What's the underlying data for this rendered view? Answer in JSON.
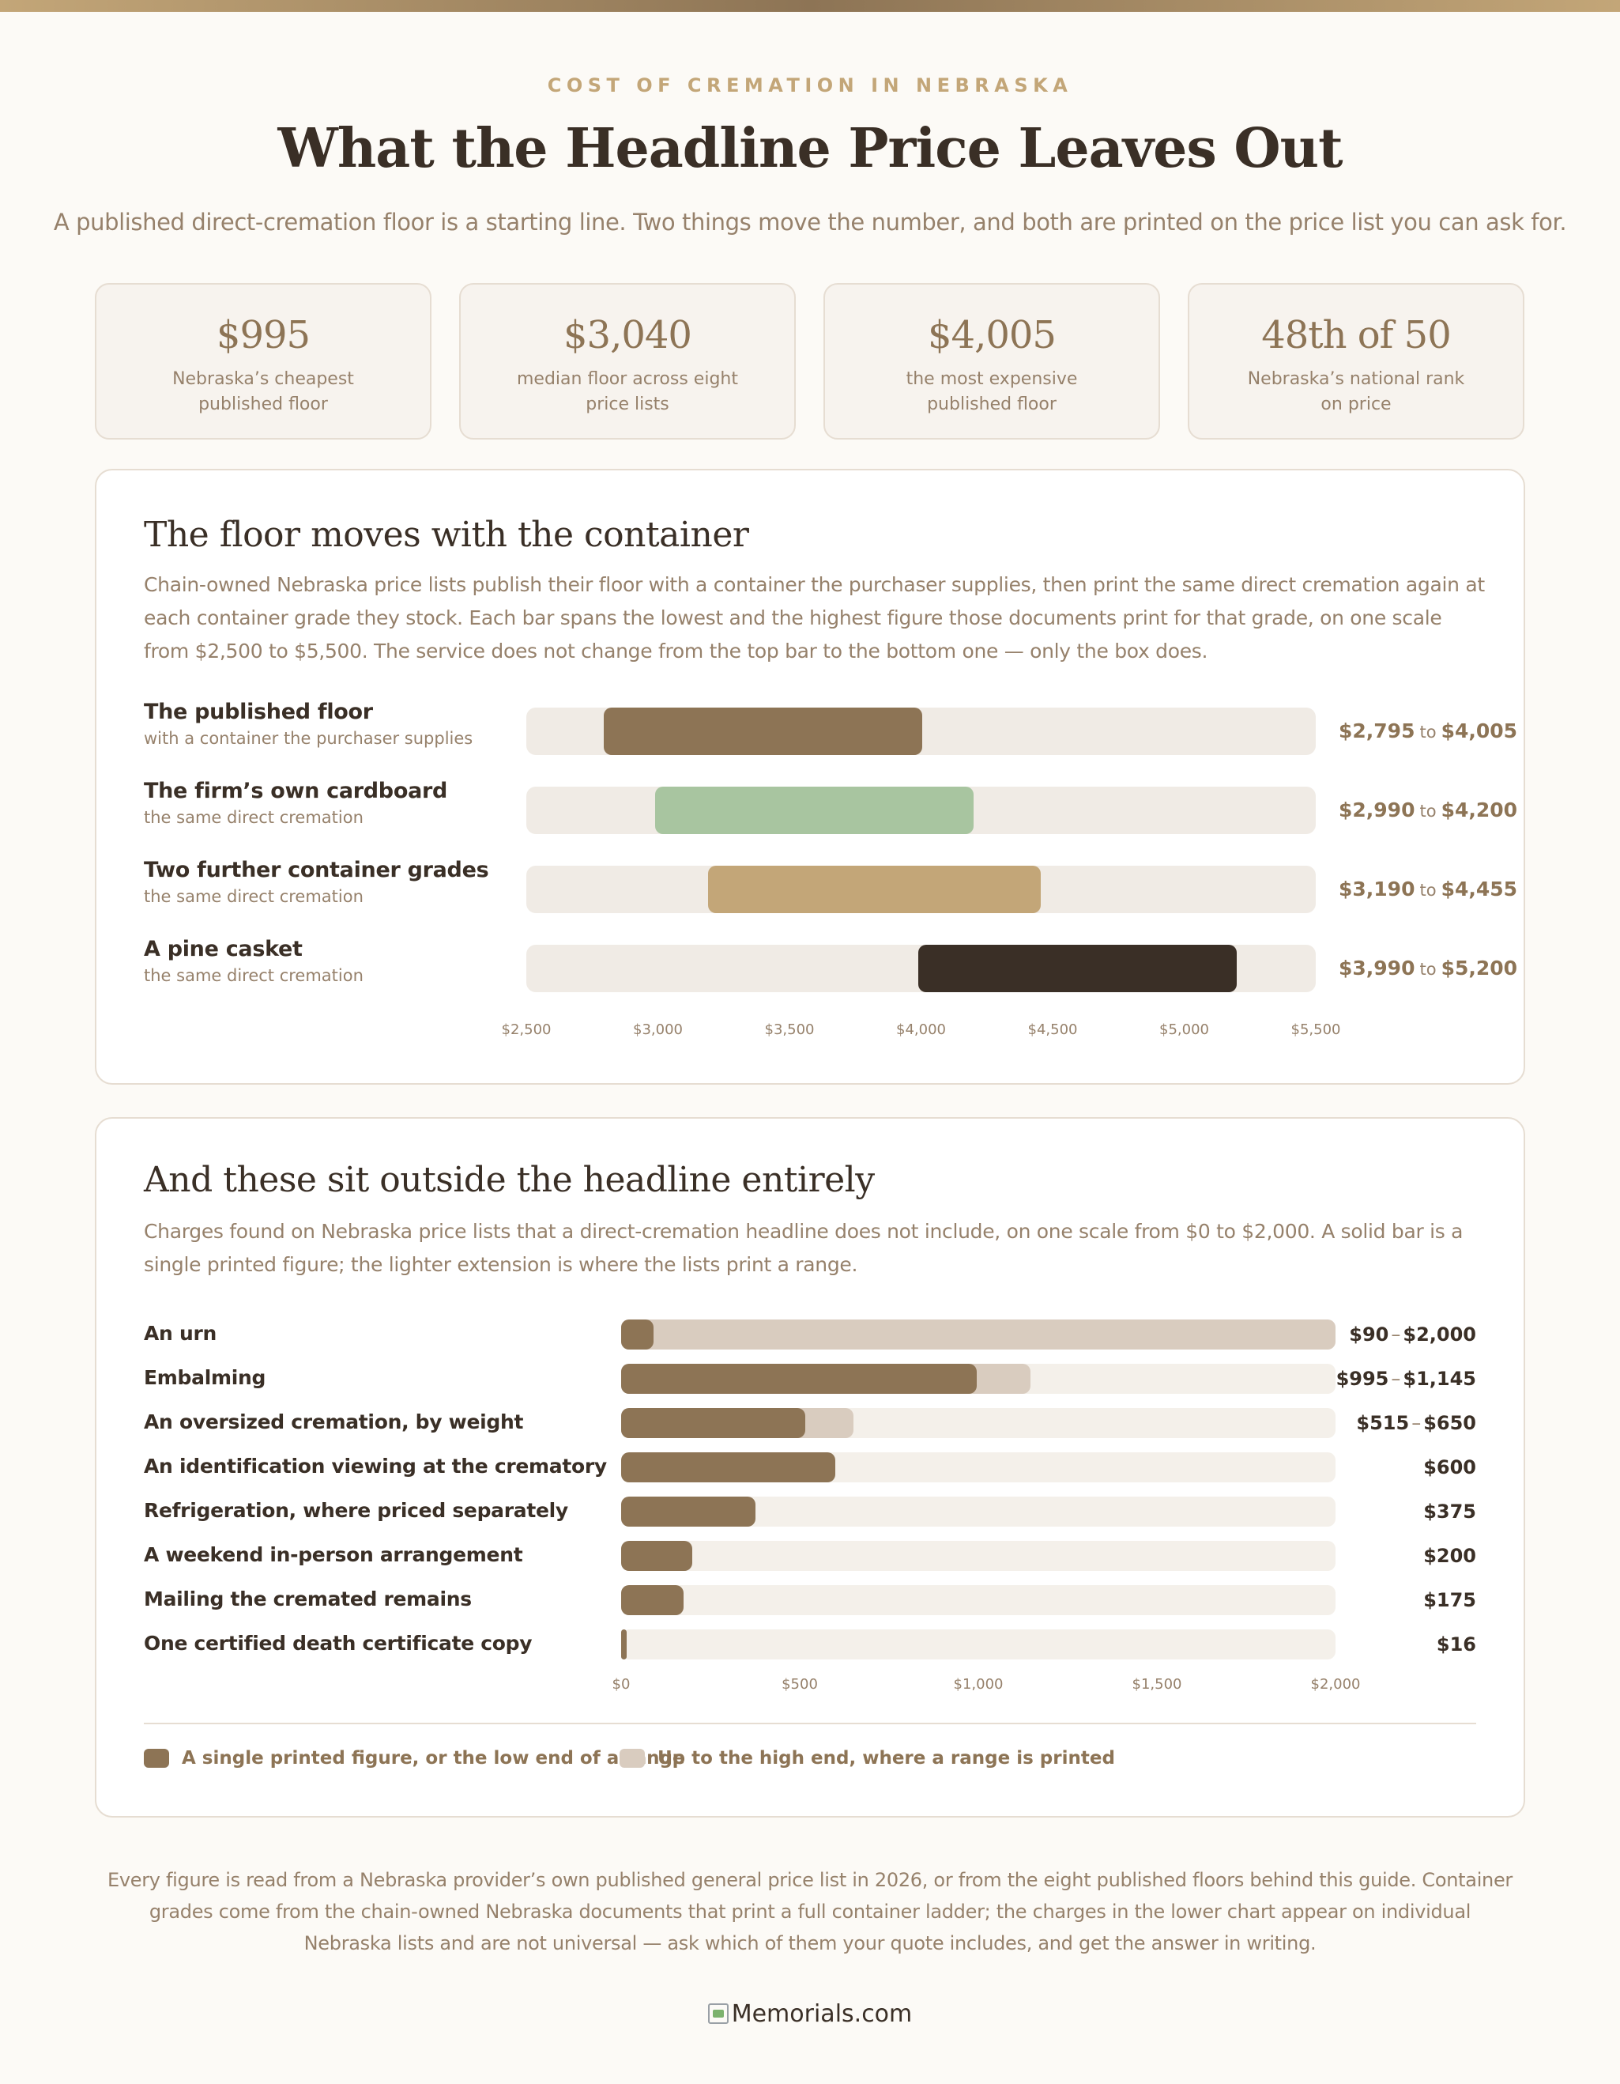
{
  "header": {
    "eyebrow": "COST OF CREMATION IN NEBRASKA",
    "title": "What the Headline Price Leaves Out",
    "subtitle": "A published direct-cremation floor is a starting line. Two things move the number, and both are printed on the price list you can ask for."
  },
  "stats": [
    {
      "value": "$995",
      "label": "Nebraska’s cheapest published floor"
    },
    {
      "value": "$3,040",
      "label": "median floor across eight price lists"
    },
    {
      "value": "$4,005",
      "label": "the most expensive published floor"
    },
    {
      "value": "48th of 50",
      "label": "Nebraska’s national rank on price"
    }
  ],
  "chart_data": [
    {
      "type": "bar",
      "orientation": "horizontal-range",
      "title": "The floor moves with the container",
      "description": "Chain-owned Nebraska price lists publish their floor with a container the purchaser supplies, then print the same direct cremation again at each container grade they stock. Each bar spans the lowest and the highest figure those documents print for that grade, on one scale from $2,500 to $5,500. The service does not change from the top bar to the bottom one — only the box does.",
      "xlim": [
        2500,
        5500
      ],
      "ticks": [
        "$2,500",
        "$3,000",
        "$3,500",
        "$4,000",
        "$4,500",
        "$5,000",
        "$5,500"
      ],
      "to_word": "to",
      "rows": [
        {
          "label": "The published floor",
          "sub": "with a container the purchaser supplies",
          "low": 2795,
          "high": 4005,
          "low_text": "$2,795",
          "high_text": "$4,005",
          "color": "#8d7455"
        },
        {
          "label": "The firm’s own cardboard",
          "sub": "the same direct cremation",
          "low": 2990,
          "high": 4200,
          "low_text": "$2,990",
          "high_text": "$4,200",
          "color": "#a8c5a0"
        },
        {
          "label": "Two further container grades",
          "sub": "the same direct cremation",
          "low": 3190,
          "high": 4455,
          "low_text": "$3,190",
          "high_text": "$4,455",
          "color": "#c3a678"
        },
        {
          "label": "A pine casket",
          "sub": "the same direct cremation",
          "low": 3990,
          "high": 5200,
          "low_text": "$3,990",
          "high_text": "$5,200",
          "color": "#3a2f26"
        }
      ]
    },
    {
      "type": "bar",
      "orientation": "horizontal",
      "title": "And these sit outside the headline entirely",
      "description": "Charges found on Nebraska price lists that a direct-cremation headline does not include, on one scale from $0 to $2,000. A solid bar is a single printed figure; the lighter extension is where the lists print a range.",
      "xlim": [
        0,
        2000
      ],
      "ticks": [
        "$0",
        "$500",
        "$1,000",
        "$1,500",
        "$2,000"
      ],
      "rows": [
        {
          "label": "An urn",
          "low": 90,
          "high": 2000,
          "low_text": "$90",
          "high_text": "$2,000"
        },
        {
          "label": "Embalming",
          "low": 995,
          "high": 1145,
          "low_text": "$995",
          "high_text": "$1,145"
        },
        {
          "label": "An oversized cremation, by weight",
          "low": 515,
          "high": 650,
          "low_text": "$515",
          "high_text": "$650"
        },
        {
          "label": "An identification viewing at the crematory",
          "low": 600,
          "high": null,
          "low_text": "$600",
          "high_text": null
        },
        {
          "label": "Refrigeration, where priced separately",
          "low": 375,
          "high": null,
          "low_text": "$375",
          "high_text": null
        },
        {
          "label": "A weekend in-person arrangement",
          "low": 200,
          "high": null,
          "low_text": "$200",
          "high_text": null
        },
        {
          "label": "Mailing the cremated remains",
          "low": 175,
          "high": null,
          "low_text": "$175",
          "high_text": null
        },
        {
          "label": "One certified death certificate copy",
          "low": 16,
          "high": null,
          "low_text": "$16",
          "high_text": null
        }
      ],
      "legend": [
        {
          "label": "A single printed figure, or the low end of a range",
          "color": "#8d7455"
        },
        {
          "label": "Up to the high end, where a range is printed",
          "color": "#d9ccbf"
        }
      ],
      "legend_placement": "bottom-left"
    }
  ],
  "footnote": "Every figure is read from a Nebraska provider’s own published general price list in 2026, or from the eight published floors behind this guide. Container grades come from the chain-owned Nebraska documents that print a full container ladder; the charges in the lower chart appear on individual Nebraska lists and are not universal — ask which of them your quote includes, and get the answer in writing.",
  "logo": {
    "alt": "Memorials.com"
  }
}
